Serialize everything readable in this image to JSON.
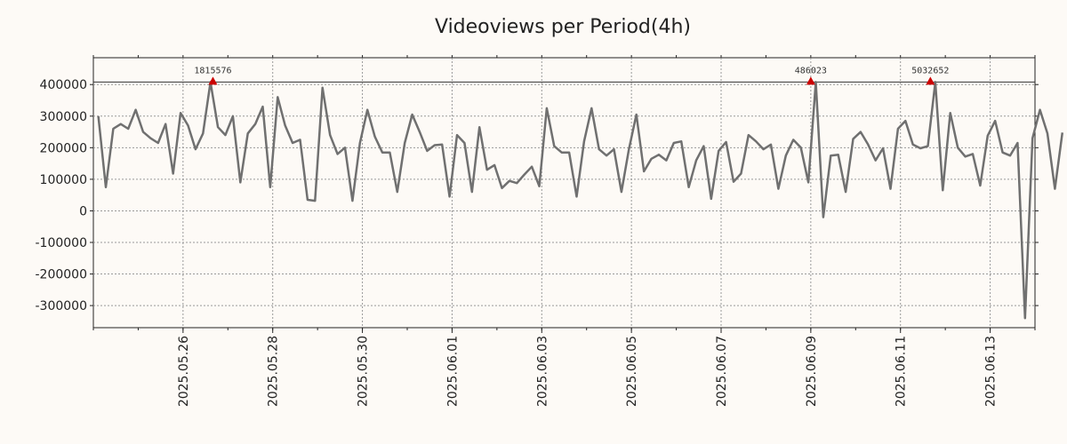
{
  "chart_data": {
    "type": "line",
    "title": "Videoviews per Period(4h)",
    "xlabel": "",
    "ylabel": "",
    "x_start": "2025.05.24",
    "x_end": "2025.06.14",
    "x_ticks": [
      "2025.05.26",
      "2025.05.28",
      "2025.05.30",
      "2025.06.01",
      "2025.06.03",
      "2025.06.05",
      "2025.06.07",
      "2025.06.09",
      "2025.06.11",
      "2025.06.13"
    ],
    "ylim": [
      -370000,
      485000
    ],
    "y_ticks": [
      400000,
      300000,
      200000,
      100000,
      0,
      -100000,
      -200000,
      -300000
    ],
    "y_tick_labels": [
      "400000",
      "300000",
      "200000",
      "100000",
      "0",
      "-100000",
      "-200000",
      "-300000"
    ],
    "reference_line": 408000,
    "grid": true,
    "legend": "none",
    "colors": {
      "line": "#707070",
      "marker": "#cc0000",
      "grid": "#999999",
      "reference": "#333333"
    },
    "annotations": [
      {
        "x": "2025.05.26 16:00",
        "y": 408000,
        "label": "1815576"
      },
      {
        "x": "2025.06.09 00:00",
        "y": 408000,
        "label": "486023"
      },
      {
        "x": "2025.06.11 16:00",
        "y": 408000,
        "label": "5032652"
      }
    ],
    "series": [
      {
        "step_hours": 4,
        "x_start": "2025.05.24 02:40",
        "values": [
          300000,
          75000,
          260000,
          275000,
          260000,
          320000,
          250000,
          230000,
          215000,
          275000,
          118000,
          310000,
          270000,
          195000,
          245000,
          408000,
          265000,
          240000,
          300000,
          90000,
          245000,
          275000,
          330000,
          75000,
          360000,
          270000,
          215000,
          225000,
          35000,
          32000,
          390000,
          240000,
          180000,
          200000,
          32000,
          215000,
          320000,
          235000,
          185000,
          185000,
          60000,
          215000,
          305000,
          250000,
          190000,
          208000,
          210000,
          45000,
          240000,
          215000,
          60000,
          265000,
          130000,
          145000,
          72000,
          95000,
          88000,
          115000,
          140000,
          78000,
          325000,
          205000,
          185000,
          185000,
          45000,
          220000,
          325000,
          195000,
          175000,
          195000,
          60000,
          195000,
          305000,
          125000,
          165000,
          178000,
          160000,
          215000,
          220000,
          75000,
          160000,
          205000,
          38000,
          190000,
          218000,
          92000,
          118000,
          240000,
          220000,
          195000,
          210000,
          70000,
          175000,
          225000,
          200000,
          90000,
          408000,
          -20000,
          175000,
          178000,
          60000,
          228000,
          250000,
          210000,
          160000,
          198000,
          70000,
          260000,
          285000,
          210000,
          198000,
          205000,
          408000,
          65000,
          310000,
          200000,
          172000,
          180000,
          80000,
          238000,
          285000,
          185000,
          175000,
          215000,
          -340000,
          230000,
          320000,
          245000,
          70000,
          248000
        ]
      }
    ]
  }
}
